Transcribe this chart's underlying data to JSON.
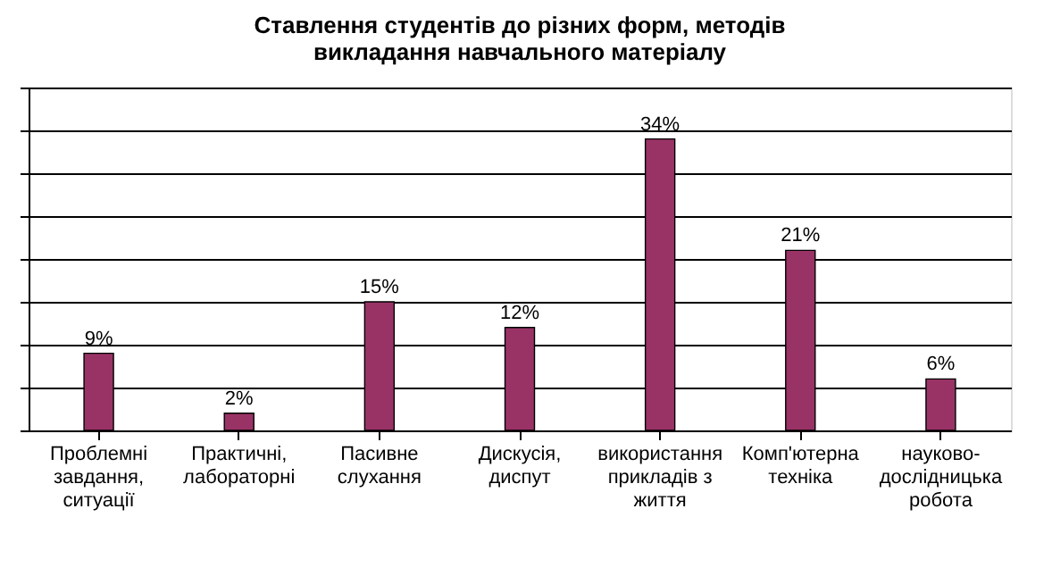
{
  "chart_data": {
    "type": "bar",
    "title": "Ставлення студентів до різних форм, методів викладання навчального матеріалу",
    "categories": [
      "Проблемні завдання, ситуації",
      "Практичні, лабораторні",
      "Пасивне слухання",
      "Дискусія, диспут",
      "використання прикладів з життя",
      "Комп'ютерна техніка",
      "науково-дослідницька робота"
    ],
    "values": [
      9,
      2,
      15,
      12,
      34,
      21,
      6
    ],
    "value_labels": [
      "9%",
      "2%",
      "15%",
      "12%",
      "34%",
      "21%",
      "6%"
    ],
    "color": "#993366",
    "ylim": [
      0,
      40
    ],
    "grid": "y",
    "tick_labels": "x"
  }
}
